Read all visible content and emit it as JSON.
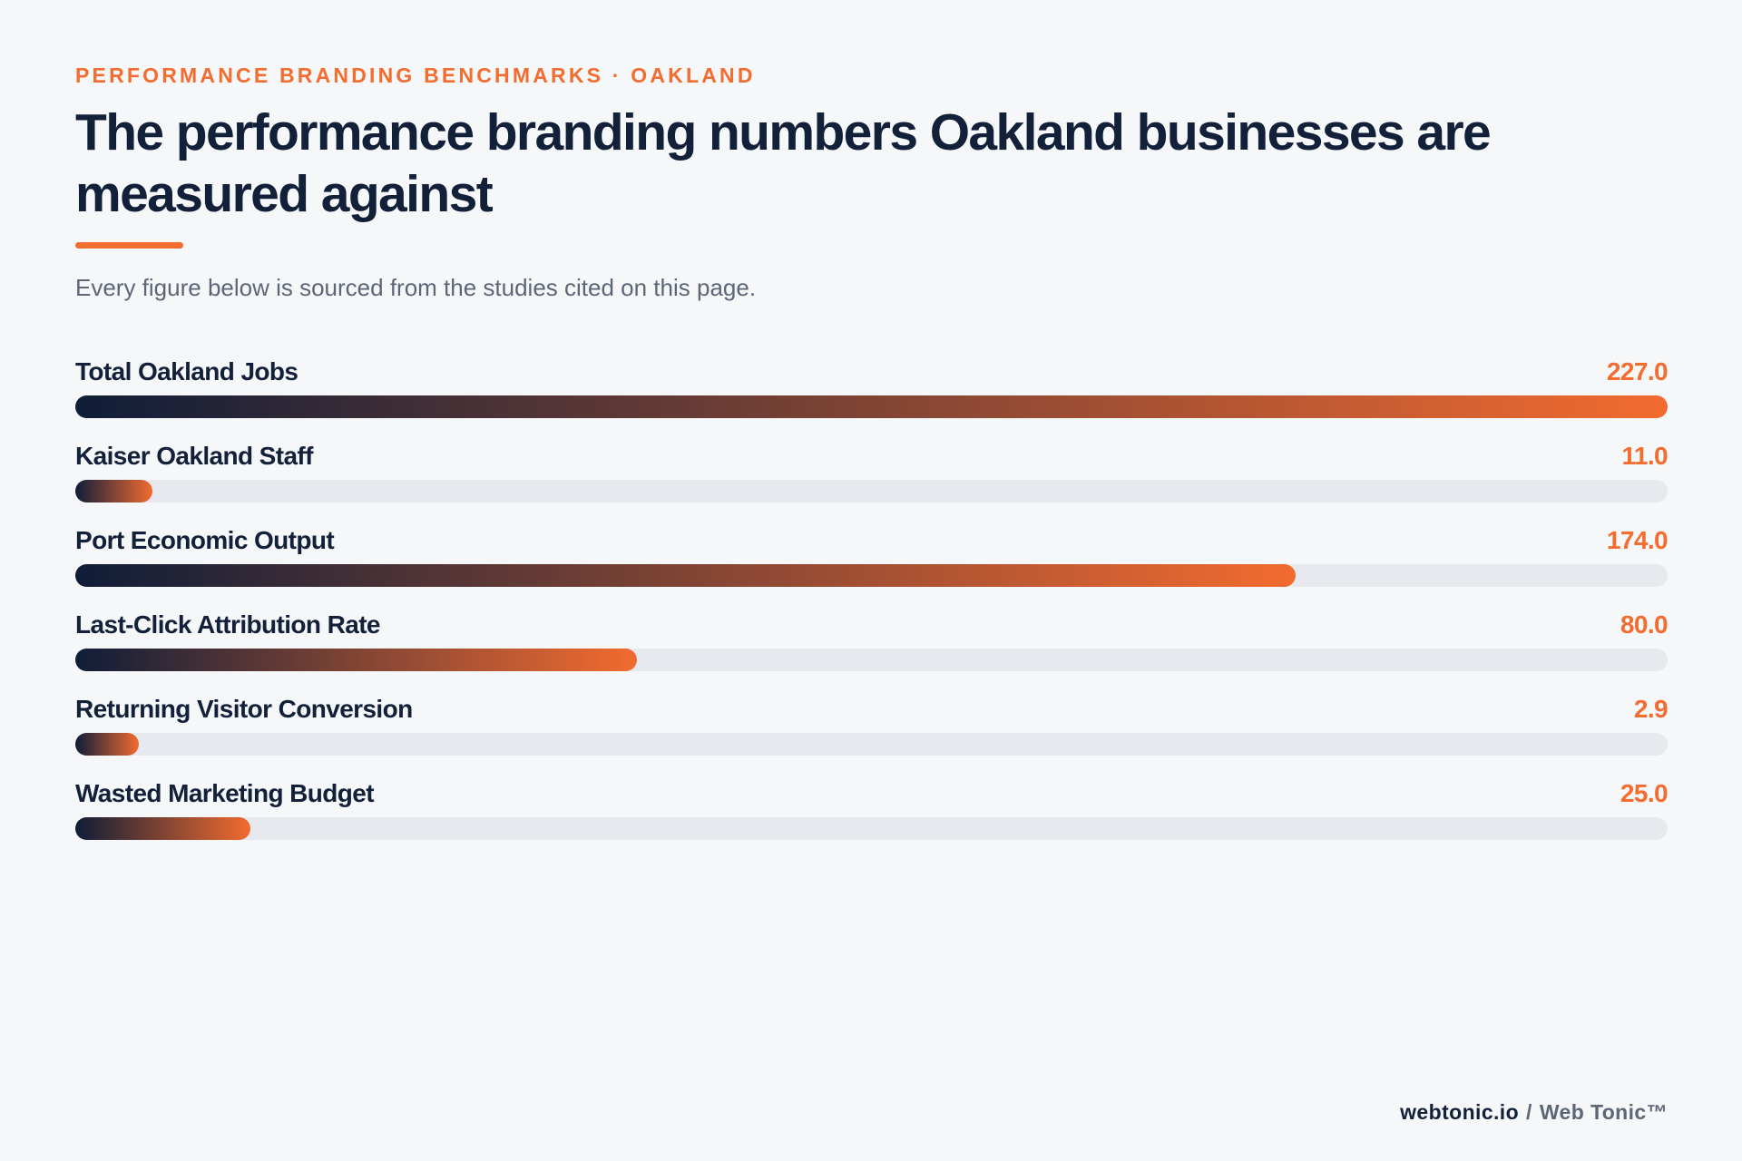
{
  "eyebrow": "PERFORMANCE BRANDING BENCHMARKS · OAKLAND",
  "subtitle": "Every figure below is sourced from the studies cited on this page.",
  "colors": {
    "accent": "#f36c30",
    "navy": "#13203a",
    "track": "#e7e9ef",
    "background": "#f6f7f9",
    "gradient_start": "#0f1d38",
    "gradient_end": "#f26b30"
  },
  "chart_data": {
    "type": "bar",
    "orientation": "horizontal",
    "title": "The performance branding numbers Oakland businesses are measured against",
    "categories": [
      "Total Oakland Jobs",
      "Kaiser Oakland Staff",
      "Port Economic Output",
      "Last-Click Attribution Rate",
      "Returning Visitor Conversion",
      "Wasted Marketing Budget"
    ],
    "values": [
      227.0,
      11.0,
      174.0,
      80.0,
      2.9,
      25.0
    ],
    "value_labels": [
      "227.0",
      "11.0",
      "174.0",
      "80.0",
      "2.9",
      "25.0"
    ],
    "xlim": [
      0,
      227.0
    ],
    "grid": false,
    "legend": "none"
  },
  "footer": {
    "domain": "webtonic.io",
    "separator": "/",
    "brand": "Web Tonic™"
  }
}
